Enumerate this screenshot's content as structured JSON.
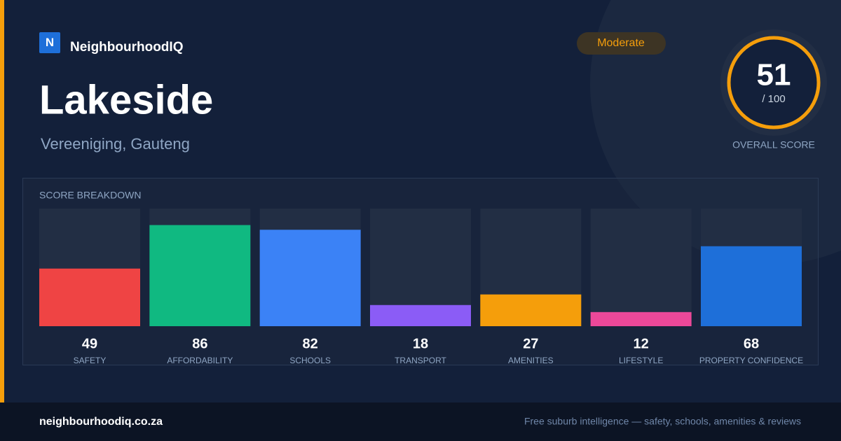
{
  "brand": "NeighbourhoodIQ",
  "logo_letter": "N",
  "badge": "Moderate",
  "title": "Lakeside",
  "subtitle": "Vereeniging, Gauteng",
  "overall": {
    "score": 51,
    "out_of": "/ 100",
    "label": "OVERALL SCORE"
  },
  "chart_data": {
    "type": "bar",
    "title": "SCORE BREAKDOWN",
    "categories": [
      "SAFETY",
      "AFFORDABILITY",
      "SCHOOLS",
      "TRANSPORT",
      "AMENITIES",
      "LIFESTYLE",
      "PROPERTY CONFIDENCE"
    ],
    "values": [
      49,
      86,
      82,
      18,
      27,
      12,
      68
    ],
    "colors": [
      "#ef4444",
      "#10b981",
      "#3b82f6",
      "#8b5cf6",
      "#f59e0b",
      "#ec4899",
      "#1e6fd9"
    ],
    "ylim": [
      0,
      100
    ]
  },
  "footer": {
    "site": "neighbourhoodiq.co.za",
    "tagline": "Free suburb intelligence — safety, schools, amenities & reviews"
  }
}
